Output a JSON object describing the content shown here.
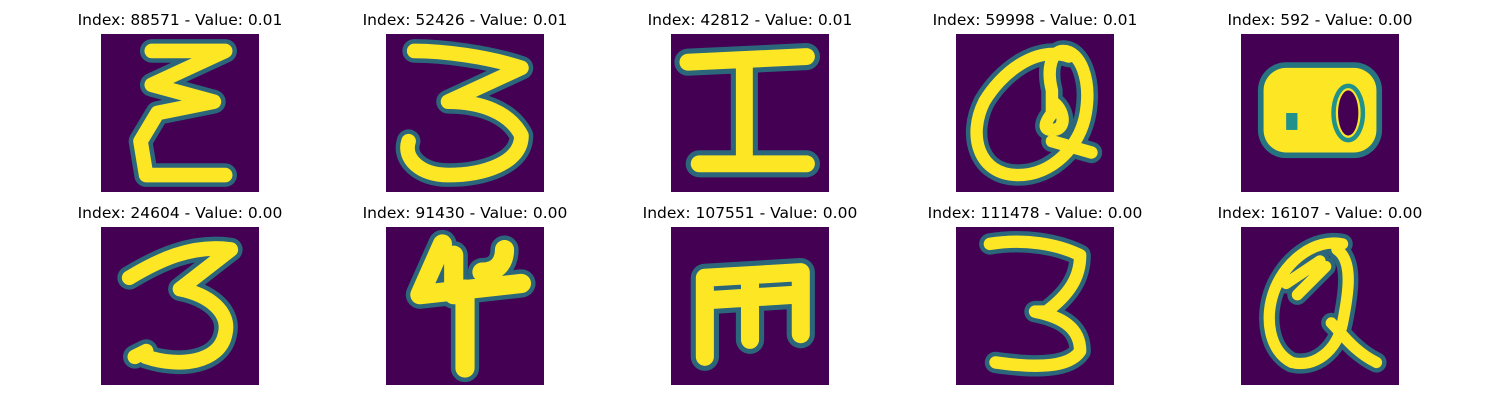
{
  "colors": {
    "background": "#440154",
    "stroke_outer": "#21918c",
    "stroke_mid": "#5ec962",
    "stroke_inner": "#fde725"
  },
  "panels": [
    {
      "title": "Index: 88571 - Value: 0.01",
      "glyph": "epsilon-like-E"
    },
    {
      "title": "Index: 52426 - Value: 0.01",
      "glyph": "three"
    },
    {
      "title": "Index: 42812 - Value: 0.01",
      "glyph": "capital-I"
    },
    {
      "title": "Index: 59998 - Value: 0.01",
      "glyph": "at-like-Q"
    },
    {
      "title": "Index: 592 - Value: 0.00",
      "glyph": "thick-blob-eight"
    },
    {
      "title": "Index: 24604 - Value: 0.00",
      "glyph": "three"
    },
    {
      "title": "Index: 91430 - Value: 0.00",
      "glyph": "four"
    },
    {
      "title": "Index: 107551 - Value: 0.00",
      "glyph": "m-rotated-E"
    },
    {
      "title": "Index: 111478 - Value: 0.00",
      "glyph": "three"
    },
    {
      "title": "Index: 16107 - Value: 0.00",
      "glyph": "at-like-Q"
    }
  ]
}
